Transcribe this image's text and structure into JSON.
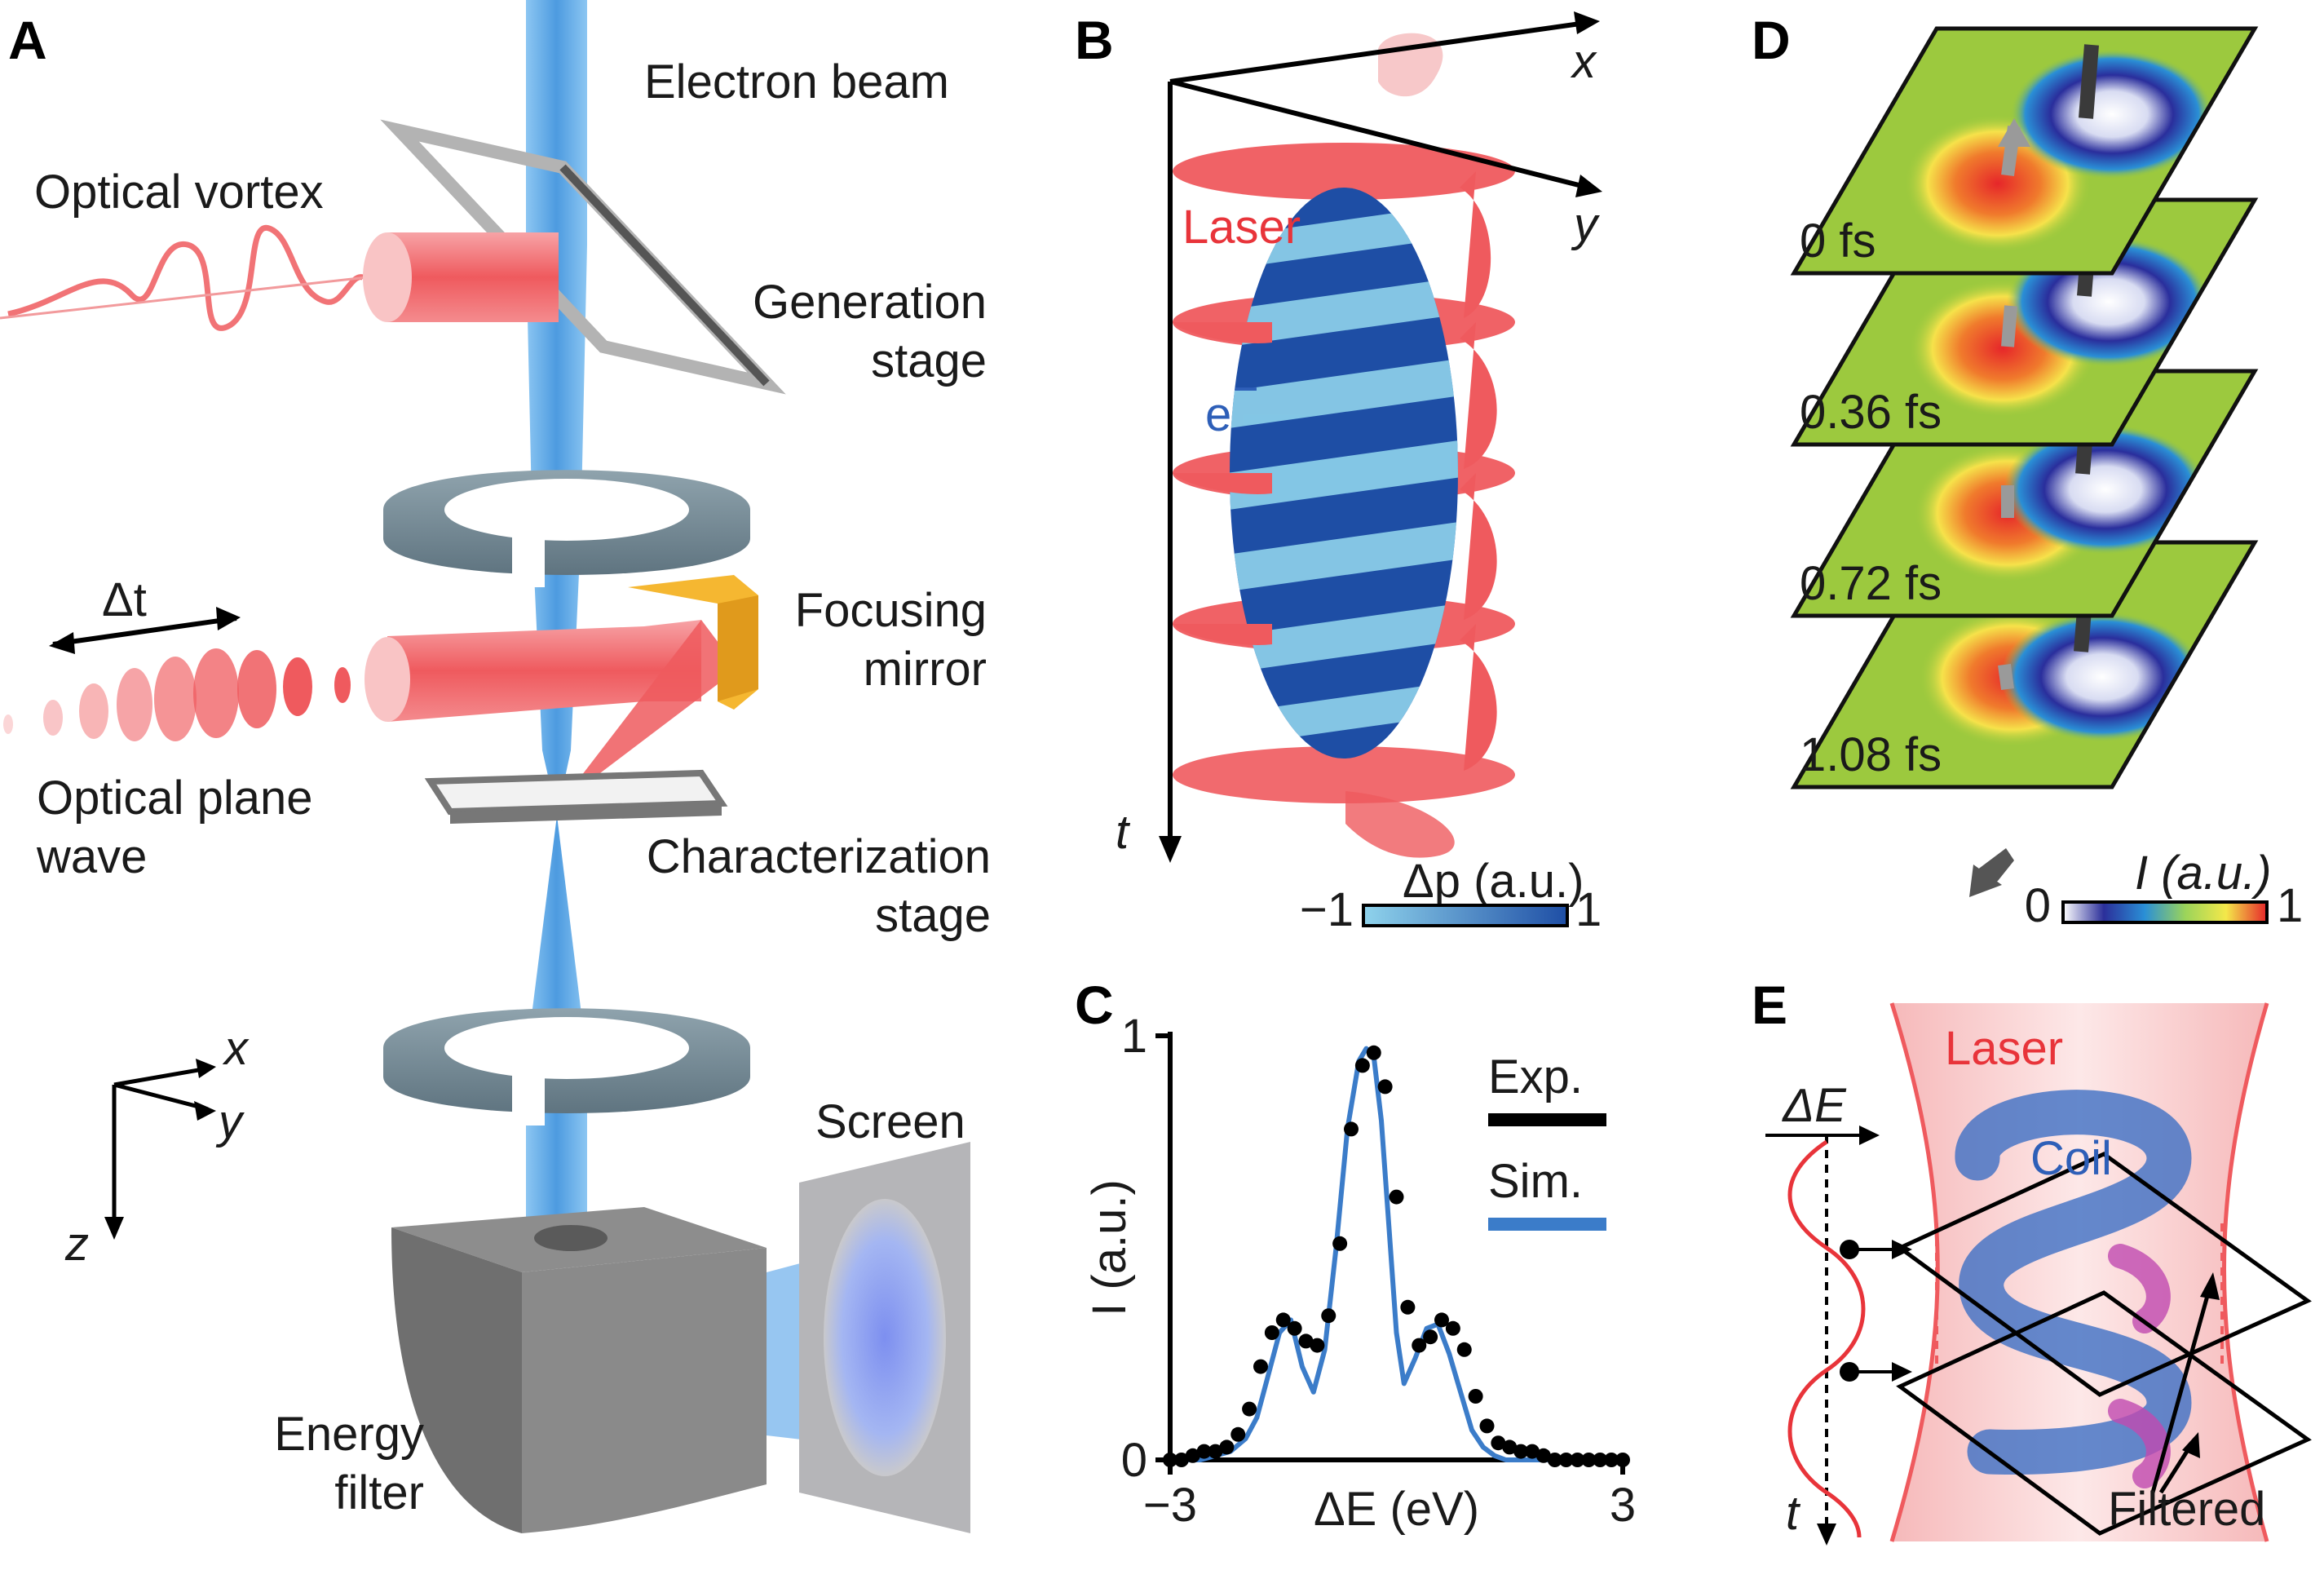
{
  "panels": {
    "A": {
      "letter": "A",
      "labels": {
        "electron_beam": "Electron beam",
        "optical_vortex": "Optical vortex",
        "generation_stage_1": "Generation",
        "generation_stage_2": "stage",
        "delta_t": "Δt",
        "focusing_mirror_1": "Focusing",
        "focusing_mirror_2": "mirror",
        "optical_plane_wave_1": "Optical plane",
        "optical_plane_wave_2": "wave",
        "characterization_stage_1": "Characterization",
        "characterization_stage_2": "stage",
        "screen": "Screen",
        "energy_filter_1": "Energy",
        "energy_filter_2": "filter",
        "axis_x": "x",
        "axis_y": "y",
        "axis_z": "z"
      }
    },
    "B": {
      "letter": "B",
      "labels": {
        "axis_x": "x",
        "axis_y": "y",
        "axis_t": "t",
        "laser": "Laser",
        "electron": "e",
        "electron_sup": "−",
        "colorbar_label": "Δp (a.u.)",
        "colorbar_min": "−1",
        "colorbar_max": "1"
      }
    },
    "C": {
      "letter": "C",
      "labels": {
        "legend_exp": "Exp.",
        "legend_sim": "Sim."
      }
    },
    "D": {
      "letter": "D",
      "frames": [
        "0 fs",
        "0.36 fs",
        "0.72 fs",
        "1.08 fs"
      ],
      "colorbar_label": "I (a.u.)",
      "colorbar_min": "0",
      "colorbar_max": "1"
    },
    "E": {
      "letter": "E",
      "labels": {
        "laser": "Laser",
        "coil": "Coil",
        "delta_e": "ΔE",
        "axis_t": "t",
        "filtered": "Filtered"
      }
    }
  },
  "colors": {
    "electron_beam": "#5aa8e6",
    "laser": "#ef5a5e",
    "sim_line": "#3b7cc9",
    "exp_points": "#000000",
    "mirror": "#f5b731",
    "coil_blue": "#3d6fc4"
  },
  "chart_data": {
    "type": "line",
    "title": "",
    "xlabel": "ΔE (eV)",
    "ylabel": "I (a.u.)",
    "xlim": [
      -3,
      3
    ],
    "ylim": [
      0,
      1
    ],
    "x_ticks": [
      "−3",
      "3"
    ],
    "y_ticks": [
      "0",
      "1"
    ],
    "series": [
      {
        "name": "Exp.",
        "style": "scatter",
        "color": "#000000",
        "x": [
          -3.0,
          -2.85,
          -2.7,
          -2.55,
          -2.4,
          -2.25,
          -2.1,
          -1.95,
          -1.8,
          -1.65,
          -1.5,
          -1.35,
          -1.2,
          -1.05,
          -0.9,
          -0.75,
          -0.6,
          -0.45,
          -0.3,
          -0.15,
          0.0,
          0.15,
          0.3,
          0.45,
          0.6,
          0.75,
          0.9,
          1.05,
          1.2,
          1.35,
          1.5,
          1.65,
          1.8,
          1.95,
          2.1,
          2.25,
          2.4,
          2.55,
          2.7,
          2.85,
          3.0
        ],
        "y": [
          0.0,
          0.0,
          0.01,
          0.02,
          0.02,
          0.03,
          0.06,
          0.12,
          0.22,
          0.3,
          0.33,
          0.31,
          0.28,
          0.27,
          0.34,
          0.51,
          0.78,
          0.93,
          0.96,
          0.88,
          0.62,
          0.36,
          0.27,
          0.29,
          0.33,
          0.31,
          0.26,
          0.15,
          0.08,
          0.04,
          0.03,
          0.02,
          0.02,
          0.01,
          0.0,
          0.0,
          0.0,
          0.0,
          0.0,
          0.0,
          0.0
        ]
      },
      {
        "name": "Sim.",
        "style": "line",
        "color": "#3b7cc9",
        "x": [
          -3.0,
          -2.8,
          -2.6,
          -2.4,
          -2.2,
          -2.0,
          -1.85,
          -1.7,
          -1.55,
          -1.4,
          -1.25,
          -1.1,
          -0.95,
          -0.8,
          -0.65,
          -0.5,
          -0.4,
          -0.3,
          -0.2,
          -0.1,
          0.0,
          0.1,
          0.25,
          0.4,
          0.55,
          0.7,
          0.85,
          1.0,
          1.15,
          1.3,
          1.45,
          1.6,
          1.8,
          2.0,
          2.3,
          2.6,
          3.0
        ],
        "y": [
          0.0,
          0.0,
          0.0,
          0.01,
          0.02,
          0.05,
          0.1,
          0.2,
          0.3,
          0.33,
          0.22,
          0.16,
          0.26,
          0.5,
          0.78,
          0.94,
          0.97,
          0.95,
          0.8,
          0.55,
          0.3,
          0.18,
          0.24,
          0.31,
          0.32,
          0.25,
          0.16,
          0.07,
          0.03,
          0.01,
          0.0,
          0.0,
          0.0,
          0.0,
          0.0,
          0.0,
          0.0
        ]
      }
    ]
  }
}
